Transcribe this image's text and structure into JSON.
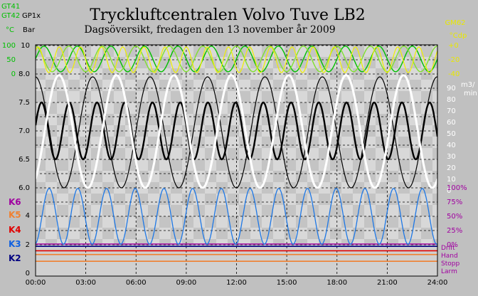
{
  "chart_data": {
    "type": "line",
    "title": "Tryckluftcentralen Volvo Tuve  LB2",
    "subtitle": "Dagsöversikt, fredagen den 13 november år 2009",
    "x_ticks": [
      "00:00",
      "03:00",
      "06:00",
      "09:00",
      "12:00",
      "15:00",
      "18:00",
      "21:00",
      "24:00"
    ],
    "left_legend": [
      {
        "label": "GT41",
        "color": "#00c000"
      },
      {
        "label": "GT42",
        "color": "#00c000"
      },
      {
        "label": "GP1x",
        "color": "#000000"
      },
      {
        "label": "°C",
        "color": "#00c000"
      },
      {
        "label": "Bar",
        "color": "#000000"
      }
    ],
    "right_legend": [
      {
        "label": "GM62",
        "color": "#e8e800"
      },
      {
        "label": "°Cdp",
        "color": "#e8e800"
      }
    ],
    "temp_axis": {
      "ticks": [
        "100",
        "50",
        "0"
      ],
      "color": "#00c000"
    },
    "pressure_axis": {
      "ticks": [
        "10",
        "8.0",
        "7.5",
        "7.0",
        "6.5",
        "6.0",
        "4",
        "2",
        "0"
      ],
      "color": "#000000"
    },
    "dewpoint_axis": {
      "ticks": [
        "+0",
        "-20",
        "-40"
      ],
      "color": "#e8e800"
    },
    "flow_axis": {
      "ticks": [
        "90",
        "80",
        "70",
        "60",
        "50",
        "40",
        "30",
        "20",
        "10",
        "0"
      ],
      "unit_top": "m3/",
      "unit_bottom": "min",
      "color": "#ffffff"
    },
    "percent_axis": {
      "ticks": [
        "100%",
        "75%",
        "50%",
        "25%",
        "0%"
      ],
      "color": "#a000a0"
    },
    "compressor_labels": [
      {
        "label": "K6",
        "color": "#a000a0"
      },
      {
        "label": "K5",
        "color": "#f08030"
      },
      {
        "label": "K4",
        "color": "#e00000"
      },
      {
        "label": "K3",
        "color": "#1060e0"
      },
      {
        "label": "K2",
        "color": "#000080"
      }
    ],
    "status_labels": [
      {
        "label": "Drift",
        "color": "#a000a0"
      },
      {
        "label": "Hand",
        "color": "#a000a0"
      },
      {
        "label": "Stopp",
        "color": "#a000a0"
      },
      {
        "label": "Larm",
        "color": "#a000a0"
      }
    ],
    "temp_ylim": [
      0,
      100
    ],
    "dewpoint_ylim": [
      -40,
      0
    ],
    "pressure_ylim": [
      6.0,
      8.0
    ],
    "flow_ylim": [
      0,
      100
    ],
    "percent_ylim": [
      0,
      100
    ],
    "series": [
      {
        "name": "GT41",
        "axis": "temp",
        "color": "#00c000",
        "cycles": 12,
        "min": 8,
        "max": 98,
        "phase": 0.0
      },
      {
        "name": "GT42",
        "axis": "temp",
        "color": "#80e030",
        "cycles": 12,
        "min": 8,
        "max": 98,
        "phase": 1.6
      },
      {
        "name": "GM62",
        "axis": "dewpoint",
        "color": "#f0f000",
        "cycles": 19,
        "min": -38,
        "max": -2,
        "phase": 0.8
      },
      {
        "name": "GP1x",
        "axis": "pressure",
        "color": "#000000",
        "cycles": 14.5,
        "min": 6.5,
        "max": 7.5,
        "phase": 0.2
      },
      {
        "name": "GP1x-outer",
        "axis": "pressure",
        "color": "#000000",
        "cycles": 7,
        "min": 6.0,
        "max": 7.95,
        "phase": 1.6
      },
      {
        "name": "Flow",
        "axis": "flow",
        "color": "#ffffff",
        "cycles": 7,
        "min": 0,
        "max": 99,
        "phase": -1.0
      },
      {
        "name": "K3 load",
        "axis": "percent",
        "color": "#1e78e6",
        "cycles": 14,
        "min": 1,
        "max": 99,
        "phase": -1.4
      }
    ],
    "status_lines": [
      {
        "color": "#a000a0",
        "value": 2.0
      },
      {
        "color": "#000080",
        "value": 1.85
      },
      {
        "color": "#e00000",
        "value": 1.55
      },
      {
        "color": "#f08030",
        "value": 1.3
      },
      {
        "color": "#f08030",
        "value": 0.85
      }
    ],
    "grid": true
  }
}
